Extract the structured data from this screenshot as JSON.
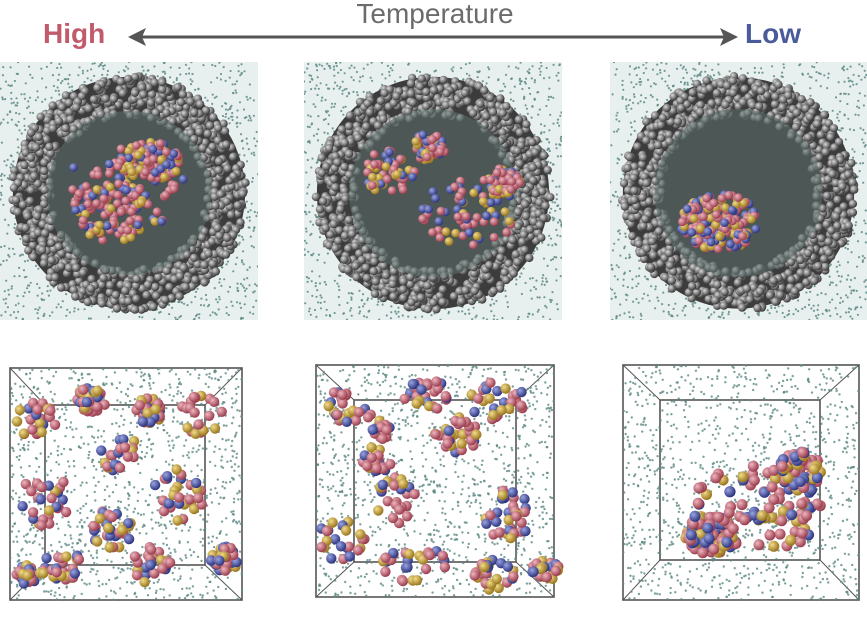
{
  "header": {
    "high_label": "High",
    "low_label": "Low",
    "axis_label": "Temperature"
  },
  "colors": {
    "high": "#c15b6c",
    "low": "#4a5a9a",
    "arrow": "#555555",
    "solvent": "#5e8a85",
    "shell": "#4a4a4a",
    "bead_red": "#c26a77",
    "bead_blue": "#4b55a6",
    "bead_yellow": "#c8a23a"
  },
  "panels": {
    "top": [
      "droplet-high",
      "droplet-mid",
      "droplet-low"
    ],
    "bottom": [
      "box-high",
      "box-mid",
      "box-low"
    ]
  }
}
